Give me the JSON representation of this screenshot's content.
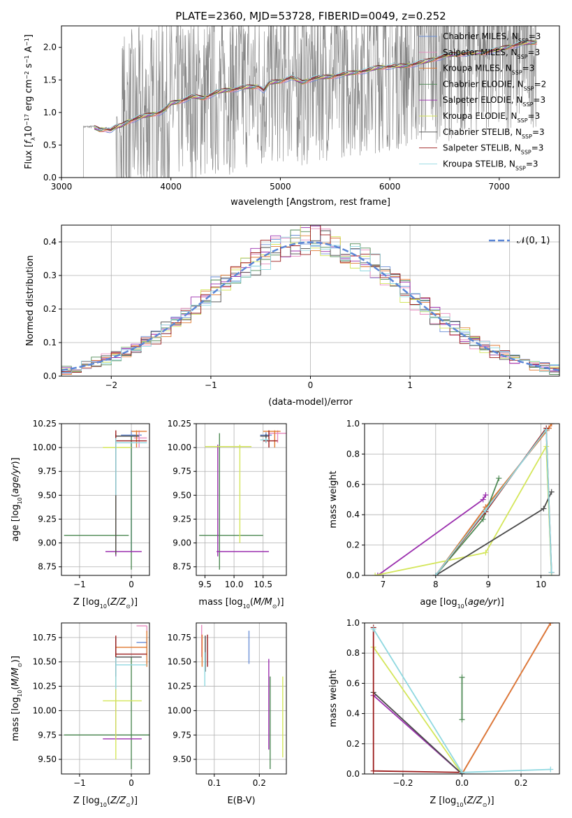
{
  "title": "PLATE=2360, MJD=53728, FIBERID=0049, z=0.252",
  "colors": {
    "chabrier_miles": "#6b8fd6",
    "salpeter_miles": "#e88abf",
    "kroupa_miles": "#e07a30",
    "chabrier_elodie": "#4f8a55",
    "salpeter_elodie": "#9b2fae",
    "kroupa_elodie": "#d4e65a",
    "chabrier_stelib": "#4a4a4a",
    "salpeter_stelib": "#9b1c1c",
    "kroupa_stelib": "#8fd8e0",
    "observed": "#808080",
    "normal": "#5a86d6"
  },
  "legend": [
    {
      "key": "chabrier_miles",
      "prefix": "Chabrier MILES, N",
      "sub": "SSP",
      "suffix": "=3"
    },
    {
      "key": "salpeter_miles",
      "prefix": "Salpeter MILES, N",
      "sub": "SSP",
      "suffix": "=3"
    },
    {
      "key": "kroupa_miles",
      "prefix": "Kroupa MILES, N",
      "sub": "SSP",
      "suffix": "=3"
    },
    {
      "key": "chabrier_elodie",
      "prefix": "Chabrier ELODIE, N",
      "sub": "SSP",
      "suffix": "=2"
    },
    {
      "key": "salpeter_elodie",
      "prefix": "Salpeter ELODIE, N",
      "sub": "SSP",
      "suffix": "=3"
    },
    {
      "key": "kroupa_elodie",
      "prefix": "Kroupa ELODIE, N",
      "sub": "SSP",
      "suffix": "=3"
    },
    {
      "key": "chabrier_stelib",
      "prefix": "Chabrier STELIB, N",
      "sub": "SSP",
      "suffix": "=3"
    },
    {
      "key": "salpeter_stelib",
      "prefix": "Salpeter STELIB, N",
      "sub": "SSP",
      "suffix": "=3"
    },
    {
      "key": "kroupa_stelib",
      "prefix": "Kroupa STELIB, N",
      "sub": "SSP",
      "suffix": "=3"
    }
  ],
  "chart_data": [
    {
      "id": "spectrum",
      "type": "line",
      "xlabel": "wavelength [Angstrom, rest frame]",
      "ylabel": "Flux [f_λ 10^-17 erg cm^-2 s^-1 A^-1]",
      "xlim": [
        3000,
        7550
      ],
      "ylim": [
        0,
        2.33
      ],
      "xticks": [
        3000,
        4000,
        5000,
        6000,
        7000
      ],
      "yticks": [
        0.0,
        0.5,
        1.0,
        1.5,
        2.0
      ],
      "observed_start": 3200,
      "observed_noisy_from": 3500,
      "model_continuum": {
        "x": [
          3300,
          3350,
          3400,
          3450,
          3500,
          3550,
          3600,
          3700,
          3800,
          3900,
          3950,
          4000,
          4100,
          4200,
          4300,
          4400,
          4500,
          4600,
          4700,
          4800,
          4850,
          4900,
          5000,
          5100,
          5200,
          5300,
          5400,
          5500,
          5600,
          5700,
          5800,
          5900,
          6000,
          6100,
          6200,
          6300,
          6400,
          6500,
          6600,
          6700,
          6800,
          6900,
          7000,
          7100,
          7200,
          7350
        ],
        "y": [
          0.78,
          0.75,
          0.76,
          0.74,
          0.78,
          0.8,
          0.85,
          0.9,
          0.95,
          1.0,
          1.05,
          1.15,
          1.2,
          1.25,
          1.22,
          1.28,
          1.33,
          1.36,
          1.4,
          1.42,
          1.35,
          1.46,
          1.48,
          1.52,
          1.45,
          1.52,
          1.55,
          1.58,
          1.6,
          1.62,
          1.63,
          1.68,
          1.7,
          1.72,
          1.75,
          1.78,
          1.82,
          1.85,
          1.88,
          1.9,
          1.92,
          1.95,
          1.98,
          2.02,
          2.04,
          2.07
        ]
      }
    },
    {
      "id": "residuals",
      "type": "histogram",
      "xlabel": "(data-model)/error",
      "ylabel": "Normed distribution",
      "xlim": [
        -2.5,
        2.5
      ],
      "ylim": [
        0,
        0.45
      ],
      "xticks": [
        -2,
        -1,
        0,
        1,
        2
      ],
      "yticks": [
        0.0,
        0.1,
        0.2,
        0.3,
        0.4
      ],
      "legend_label": "𝒩(0, 1)",
      "normal_curve": {
        "mean": 0,
        "sigma": 1
      }
    },
    {
      "id": "age_vs_Z",
      "type": "errorbar",
      "xlabel": "Z [log10(Z/Z⊙)]",
      "ylabel": "age  [log10(age/yr)]",
      "xlim": [
        -1.35,
        0.35
      ],
      "ylim": [
        8.66,
        10.25
      ],
      "xticks": [
        -1,
        0
      ],
      "yticks": [
        8.75,
        9.0,
        9.25,
        9.5,
        9.75,
        10.0,
        10.25
      ],
      "points": [
        {
          "s": "chabrier_miles",
          "x": 0.0,
          "y": 10.13,
          "xlo": -0.2,
          "xhi": 0.2,
          "ylo": 8.9,
          "yhi": 10.18
        },
        {
          "s": "salpeter_miles",
          "x": 0.15,
          "y": 10.1,
          "xlo": 0.05,
          "xhi": 0.3,
          "ylo": 10.0,
          "yhi": 10.18
        },
        {
          "s": "kroupa_miles",
          "x": 0.1,
          "y": 10.17,
          "xlo": 0.0,
          "xhi": 0.3,
          "ylo": 10.0,
          "yhi": 10.18
        },
        {
          "s": "chabrier_elodie",
          "x": 0.0,
          "y": 9.08,
          "xlo": -1.3,
          "xhi": -0.05,
          "ylo": 8.72,
          "yhi": 10.12
        },
        {
          "s": "salpeter_elodie",
          "x": -0.3,
          "y": 8.91,
          "xlo": -0.5,
          "xhi": 0.2,
          "ylo": 8.86,
          "yhi": 10.03
        },
        {
          "s": "kroupa_elodie",
          "x": -0.3,
          "y": 10.0,
          "xlo": -0.55,
          "xhi": 0.0,
          "ylo": 8.88,
          "yhi": 10.03
        },
        {
          "s": "chabrier_stelib",
          "x": -0.3,
          "y": 10.12,
          "xlo": -0.3,
          "xhi": 0.15,
          "ylo": 8.88,
          "yhi": 10.14
        },
        {
          "s": "salpeter_stelib",
          "x": -0.3,
          "y": 10.07,
          "xlo": -0.3,
          "xhi": 0.3,
          "ylo": 9.5,
          "yhi": 10.18
        },
        {
          "s": "kroupa_stelib",
          "x": -0.3,
          "y": 10.05,
          "xlo": -0.3,
          "xhi": 0.3,
          "ylo": 9.5,
          "yhi": 10.1
        }
      ]
    },
    {
      "id": "age_vs_mass",
      "type": "errorbar",
      "xlabel": "mass [log10(M/M⊙)]",
      "xlim": [
        9.35,
        10.9
      ],
      "ylim": [
        8.66,
        10.25
      ],
      "xticks": [
        9.5,
        10.0,
        10.5
      ],
      "yticks": [
        8.75,
        9.0,
        9.25,
        9.5,
        9.75,
        10.0,
        10.25
      ],
      "points": [
        {
          "s": "chabrier_miles",
          "x": 10.55,
          "y": 10.13,
          "xlo": 10.45,
          "xhi": 10.65,
          "ylo": 10.05,
          "yhi": 10.16
        },
        {
          "s": "salpeter_miles",
          "x": 10.75,
          "y": 10.15,
          "xlo": 10.6,
          "xhi": 10.9,
          "ylo": 10.05,
          "yhi": 10.18
        },
        {
          "s": "kroupa_miles",
          "x": 10.7,
          "y": 10.17,
          "xlo": 10.5,
          "xhi": 10.8,
          "ylo": 10.0,
          "yhi": 10.18
        },
        {
          "s": "chabrier_elodie",
          "x": 9.75,
          "y": 9.08,
          "xlo": 9.4,
          "xhi": 10.5,
          "ylo": 8.72,
          "yhi": 10.15
        },
        {
          "s": "salpeter_elodie",
          "x": 9.72,
          "y": 8.91,
          "xlo": 9.7,
          "xhi": 10.6,
          "ylo": 8.86,
          "yhi": 10.03
        },
        {
          "s": "kroupa_elodie",
          "x": 10.1,
          "y": 10.01,
          "xlo": 9.5,
          "xhi": 10.3,
          "ylo": 9.0,
          "yhi": 10.03
        },
        {
          "s": "chabrier_stelib",
          "x": 10.55,
          "y": 10.12,
          "xlo": 10.45,
          "xhi": 10.6,
          "ylo": 10.05,
          "yhi": 10.14
        },
        {
          "s": "salpeter_stelib",
          "x": 10.6,
          "y": 10.07,
          "xlo": 10.5,
          "xhi": 10.75,
          "ylo": 10.0,
          "yhi": 10.18
        },
        {
          "s": "kroupa_stelib",
          "x": 10.55,
          "y": 10.08,
          "xlo": 10.45,
          "xhi": 10.6,
          "ylo": 10.05,
          "yhi": 10.1
        }
      ]
    },
    {
      "id": "weight_vs_age",
      "type": "line",
      "xlabel": "age  [log10(age/yr)]",
      "ylabel": "mass weight",
      "xlim": [
        6.65,
        10.35
      ],
      "ylim": [
        0,
        1.0
      ],
      "xticks": [
        7,
        8,
        9,
        10
      ],
      "yticks": [
        0.0,
        0.2,
        0.4,
        0.6,
        0.8,
        1.0
      ],
      "series": [
        {
          "s": "chabrier_miles",
          "x": [
            8.0,
            8.95,
            10.15,
            10.2
          ],
          "y": [
            0.0,
            0.45,
            0.97,
            1.0
          ]
        },
        {
          "s": "salpeter_miles",
          "x": [
            8.0,
            8.95,
            10.15,
            10.2
          ],
          "y": [
            0.0,
            0.45,
            0.97,
            1.0
          ]
        },
        {
          "s": "kroupa_miles",
          "x": [
            8.0,
            8.95,
            10.15,
            10.2
          ],
          "y": [
            0.0,
            0.45,
            0.97,
            1.0
          ]
        },
        {
          "s": "chabrier_elodie",
          "x": [
            8.0,
            8.9,
            9.2
          ],
          "y": [
            0.0,
            0.37,
            0.64
          ]
        },
        {
          "s": "salpeter_elodie",
          "x": [
            6.9,
            8.9,
            8.95
          ],
          "y": [
            0.0,
            0.5,
            0.53
          ]
        },
        {
          "s": "kroupa_elodie",
          "x": [
            6.85,
            8.95,
            10.1,
            10.2
          ],
          "y": [
            0.0,
            0.15,
            0.85,
            0.0
          ]
        },
        {
          "s": "chabrier_stelib",
          "x": [
            8.0,
            10.05,
            10.2
          ],
          "y": [
            0.0,
            0.44,
            0.55
          ]
        },
        {
          "s": "salpeter_stelib",
          "x": [
            8.0,
            8.95,
            10.1,
            10.2
          ],
          "y": [
            0.0,
            0.42,
            0.97,
            0.02
          ]
        },
        {
          "s": "kroupa_stelib",
          "x": [
            8.0,
            8.95,
            10.1,
            10.2
          ],
          "y": [
            0.0,
            0.43,
            0.96,
            0.02
          ]
        }
      ]
    },
    {
      "id": "mass_vs_Z",
      "type": "errorbar",
      "xlabel": "Z [log10(Z/Z⊙)]",
      "ylabel": "mass [log10(M/M⊙)]",
      "xlim": [
        -1.35,
        0.35
      ],
      "ylim": [
        9.35,
        10.9
      ],
      "xticks": [
        -1,
        0
      ],
      "yticks": [
        9.5,
        9.75,
        10.0,
        10.25,
        10.5,
        10.75
      ],
      "points": [
        {
          "s": "chabrier_miles",
          "x": 0.3,
          "y": 10.7,
          "xlo": 0.1,
          "xhi": 0.3,
          "ylo": 10.55,
          "yhi": 10.75
        },
        {
          "s": "salpeter_miles",
          "x": 0.3,
          "y": 10.87,
          "xlo": 0.1,
          "xhi": 0.3,
          "ylo": 10.8,
          "yhi": 10.87
        },
        {
          "s": "kroupa_miles",
          "x": 0.3,
          "y": 10.65,
          "xlo": -0.3,
          "xhi": 0.3,
          "ylo": 10.45,
          "yhi": 10.82
        },
        {
          "s": "chabrier_elodie",
          "x": 0.0,
          "y": 9.75,
          "xlo": -1.3,
          "xhi": 0.35,
          "ylo": 9.4,
          "yhi": 10.55
        },
        {
          "s": "salpeter_elodie",
          "x": -0.3,
          "y": 9.71,
          "xlo": -0.55,
          "xhi": 0.2,
          "ylo": 9.7,
          "yhi": 10.55
        },
        {
          "s": "kroupa_elodie",
          "x": -0.3,
          "y": 10.1,
          "xlo": -0.55,
          "xhi": 0.2,
          "ylo": 9.5,
          "yhi": 10.6
        },
        {
          "s": "chabrier_stelib",
          "x": -0.3,
          "y": 10.55,
          "xlo": -0.3,
          "xhi": 0.2,
          "ylo": 10.35,
          "yhi": 10.75
        },
        {
          "s": "salpeter_stelib",
          "x": -0.3,
          "y": 10.58,
          "xlo": -0.3,
          "xhi": 0.3,
          "ylo": 10.35,
          "yhi": 10.77
        },
        {
          "s": "kroupa_stelib",
          "x": -0.3,
          "y": 10.47,
          "xlo": -0.3,
          "xhi": 0.3,
          "ylo": 10.22,
          "yhi": 10.55
        }
      ]
    },
    {
      "id": "mass_vs_EBV",
      "type": "errorbar",
      "xlabel": "E(B-V)",
      "xlim": [
        0.06,
        0.26
      ],
      "ylim": [
        9.35,
        10.9
      ],
      "xticks": [
        0.1,
        0.2
      ],
      "yticks": [
        9.5,
        9.75,
        10.0,
        10.25,
        10.5,
        10.75
      ],
      "points": [
        {
          "s": "chabrier_miles",
          "x": 0.177,
          "y": 10.65,
          "ylo": 10.48,
          "yhi": 10.82
        },
        {
          "s": "salpeter_miles",
          "x": 0.072,
          "y": 10.72,
          "ylo": 10.55,
          "yhi": 10.88
        },
        {
          "s": "kroupa_miles",
          "x": 0.073,
          "y": 10.62,
          "ylo": 10.45,
          "yhi": 10.78
        },
        {
          "s": "chabrier_elodie",
          "x": 0.224,
          "y": 9.9,
          "ylo": 9.4,
          "yhi": 10.35
        },
        {
          "s": "salpeter_elodie",
          "x": 0.221,
          "y": 10.0,
          "ylo": 9.6,
          "yhi": 10.53
        },
        {
          "s": "kroupa_elodie",
          "x": 0.252,
          "y": 9.95,
          "ylo": 9.52,
          "yhi": 10.35
        },
        {
          "s": "chabrier_stelib",
          "x": 0.08,
          "y": 10.6,
          "ylo": 10.4,
          "yhi": 10.77
        },
        {
          "s": "salpeter_stelib",
          "x": 0.085,
          "y": 10.62,
          "ylo": 10.45,
          "yhi": 10.78
        },
        {
          "s": "kroupa_stelib",
          "x": 0.079,
          "y": 10.45,
          "ylo": 10.25,
          "yhi": 10.6
        }
      ]
    },
    {
      "id": "weight_vs_Z",
      "type": "line",
      "xlabel": "Z [log10(Z/Z⊙)]",
      "ylabel": "mass weight",
      "xlim": [
        -0.33,
        0.33
      ],
      "ylim": [
        0,
        1.0
      ],
      "xticks": [
        -0.2,
        0.0,
        0.2
      ],
      "yticks": [
        0.0,
        0.2,
        0.4,
        0.6,
        0.8,
        1.0
      ],
      "series": [
        {
          "s": "chabrier_miles",
          "x": [
            0.0,
            0.3
          ],
          "y": [
            0.0,
            1.0
          ]
        },
        {
          "s": "salpeter_miles",
          "x": [
            0.0,
            0.3
          ],
          "y": [
            0.0,
            1.0
          ]
        },
        {
          "s": "kroupa_miles",
          "x": [
            0.0,
            0.3
          ],
          "y": [
            0.0,
            1.0
          ]
        },
        {
          "s": "chabrier_elodie",
          "x": [
            0.0,
            0.0
          ],
          "y": [
            0.36,
            0.64
          ]
        },
        {
          "s": "salpeter_elodie",
          "x": [
            -0.3,
            0.0
          ],
          "y": [
            0.52,
            0.0
          ]
        },
        {
          "s": "kroupa_elodie",
          "x": [
            -0.3,
            0.0
          ],
          "y": [
            0.84,
            0.0
          ]
        },
        {
          "s": "chabrier_stelib",
          "x": [
            -0.3,
            0.0
          ],
          "y": [
            0.54,
            0.0
          ]
        },
        {
          "s": "salpeter_stelib",
          "x": [
            -0.3,
            -0.3,
            0.0
          ],
          "y": [
            0.97,
            0.02,
            0.01
          ]
        },
        {
          "s": "kroupa_stelib",
          "x": [
            -0.3,
            0.0,
            0.3
          ],
          "y": [
            0.96,
            0.01,
            0.03
          ]
        }
      ]
    }
  ]
}
